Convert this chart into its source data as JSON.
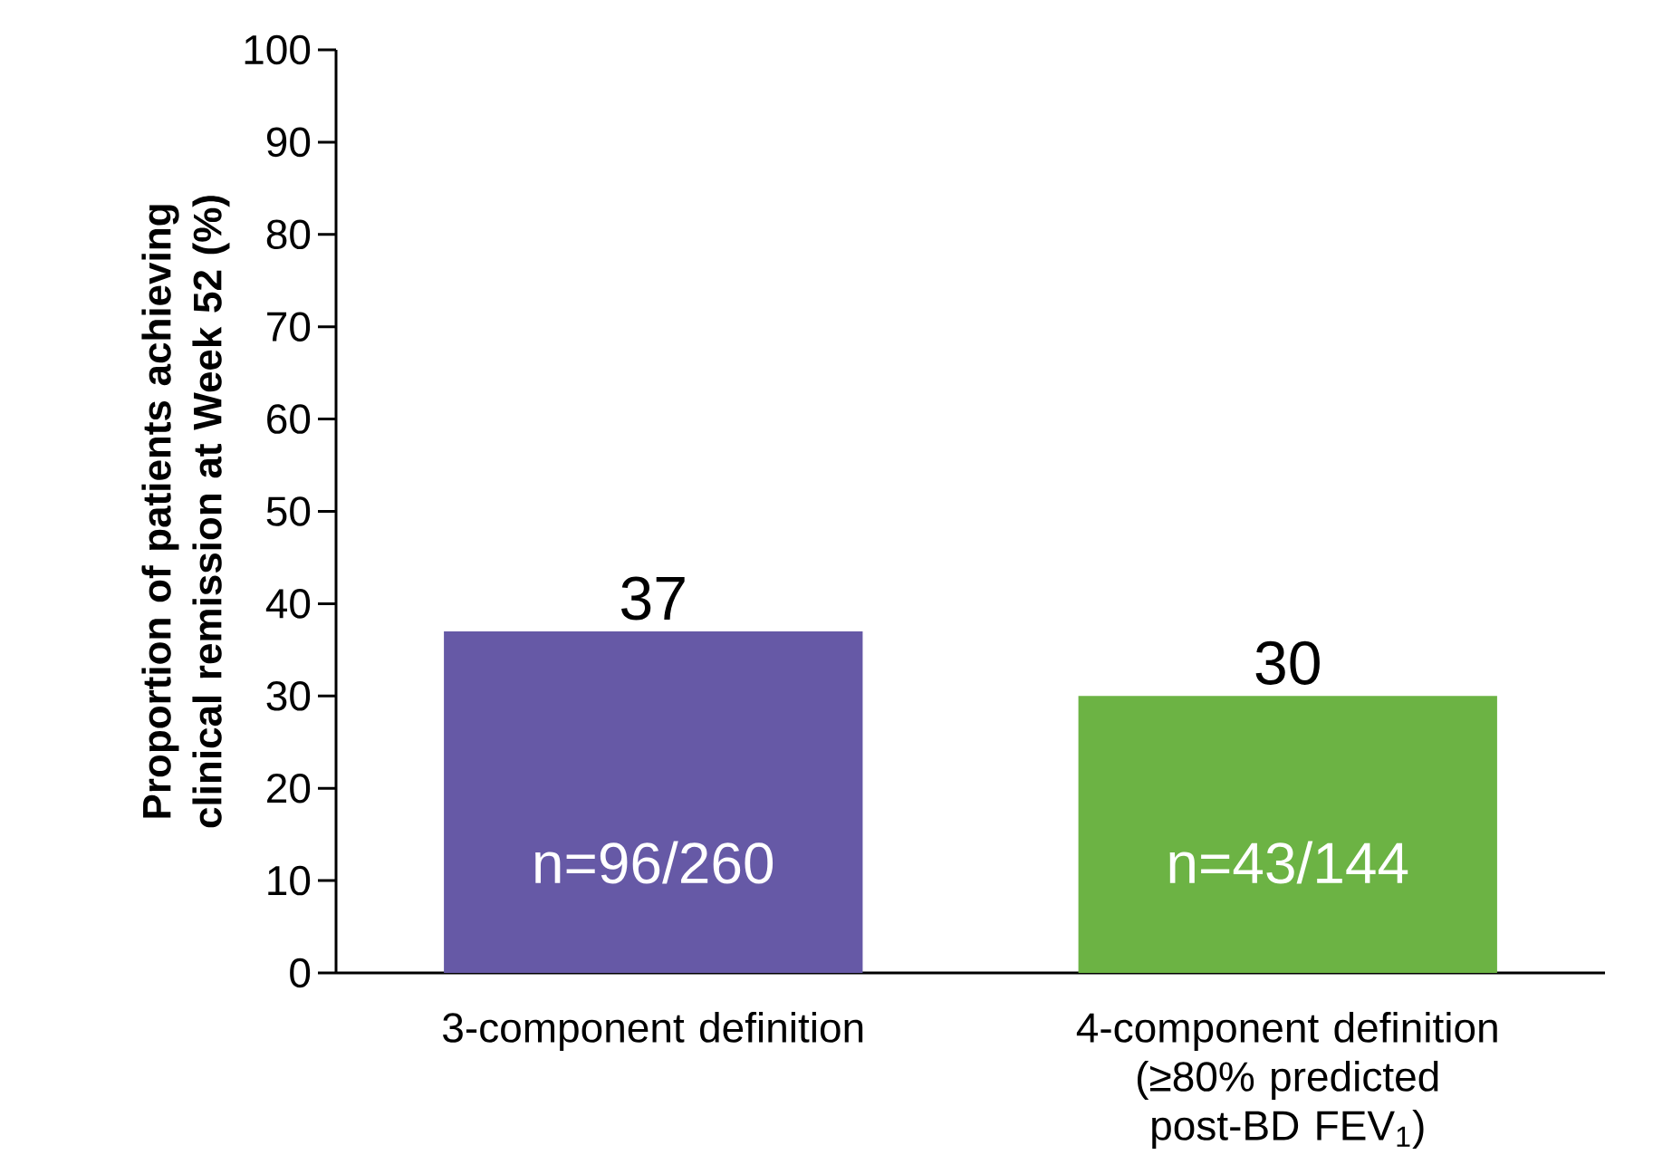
{
  "chart_data": {
    "type": "bar",
    "ylabel": "Proportion of patients achieving clinical remission at Week 52 (%)",
    "categories": [
      "3-component definition",
      "4-component definition (≥80% predicted post-BD FEV$_{1}$)"
    ],
    "values": [
      37,
      30
    ],
    "colors": [
      "#6659a6",
      "#6cb344"
    ],
    "ylim": [
      0,
      100
    ],
    "yticks": [
      0,
      10,
      20,
      30,
      40,
      50,
      60,
      70,
      80,
      90,
      100
    ],
    "data_labels": true,
    "grid": false,
    "annotations": [
      "n=96/260",
      "n=43/144"
    ]
  }
}
